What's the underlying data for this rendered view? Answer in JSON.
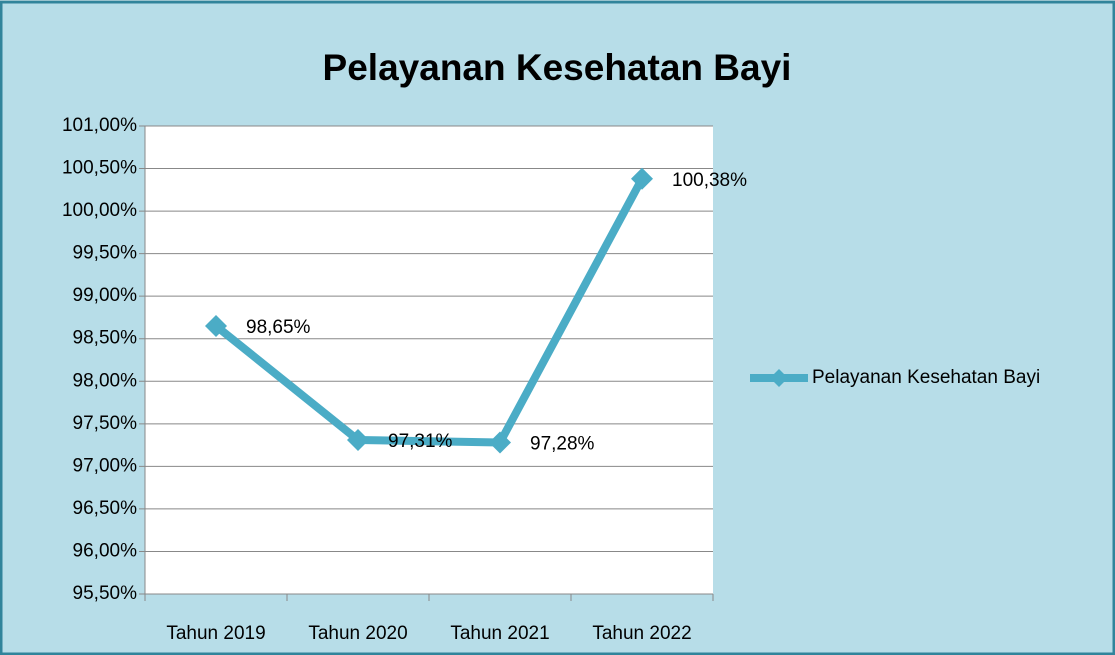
{
  "chart_data": {
    "type": "line",
    "title": "Pelayanan Kesehatan Bayi",
    "categories": [
      "Tahun 2019",
      "Tahun 2020",
      "Tahun 2021",
      "Tahun 2022"
    ],
    "series": [
      {
        "name": "Pelayanan Kesehatan Bayi",
        "color": "#4bacc6",
        "values": [
          98.65,
          97.31,
          97.28,
          100.38
        ],
        "value_labels": [
          "98,65%",
          "97,31%",
          "97,28%",
          "100,38%"
        ]
      }
    ],
    "ylim": [
      95.5,
      101
    ],
    "yticks": [
      {
        "value": 95.5,
        "label": "95,50%"
      },
      {
        "value": 96,
        "label": "96,00%"
      },
      {
        "value": 96.5,
        "label": "96,50%"
      },
      {
        "value": 97,
        "label": "97,00%"
      },
      {
        "value": 97.5,
        "label": "97,50%"
      },
      {
        "value": 98,
        "label": "98,00%"
      },
      {
        "value": 98.5,
        "label": "98,50%"
      },
      {
        "value": 99,
        "label": "99,00%"
      },
      {
        "value": 99.5,
        "label": "99,50%"
      },
      {
        "value": 100,
        "label": "100,00%"
      },
      {
        "value": 100.5,
        "label": "100,50%"
      },
      {
        "value": 101,
        "label": "101,00%"
      }
    ],
    "grid": true,
    "legend": "right"
  }
}
